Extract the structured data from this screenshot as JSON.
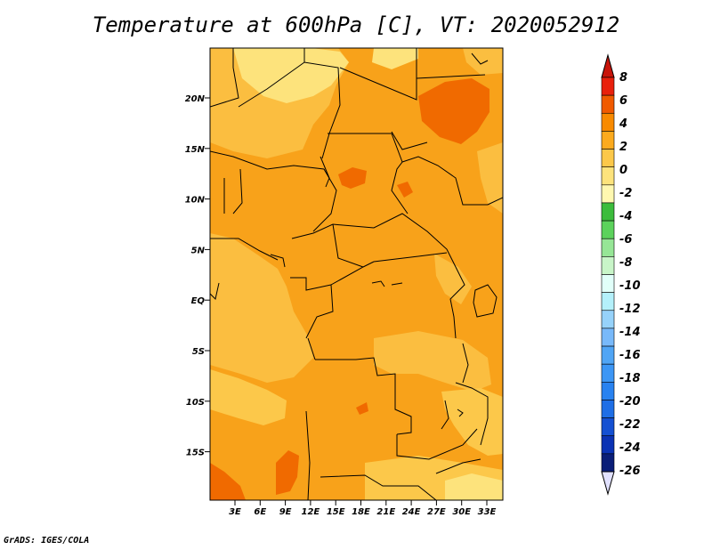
{
  "title": "Temperature at 600hPa [C], VT: 2020052912",
  "footer": "GrADS: IGES/COLA",
  "map": {
    "lat_ticks": [
      "20N",
      "15N",
      "10N",
      "5N",
      "EQ",
      "5S",
      "10S",
      "15S"
    ],
    "lon_ticks": [
      "3E",
      "6E",
      "9E",
      "12E",
      "15E",
      "18E",
      "21E",
      "24E",
      "27E",
      "30E",
      "33E"
    ]
  },
  "colorbar": {
    "labels": [
      "8",
      "6",
      "4",
      "2",
      "0",
      "-2",
      "-4",
      "-6",
      "-8",
      "-10",
      "-12",
      "-14",
      "-16",
      "-18",
      "-20",
      "-22",
      "-24",
      "-26"
    ],
    "colors": [
      "#e8200c",
      "#f05a00",
      "#f88a00",
      "#fbaa1e",
      "#fcc84a",
      "#fde37c",
      "#fff8b0",
      "#3cbc3c",
      "#5cd25c",
      "#96e696",
      "#c8f5c8",
      "#e1fff9",
      "#b4f0fa",
      "#96d2fa",
      "#78b9fa",
      "#50a5f5",
      "#3c96f5",
      "#2882f0",
      "#1e6ee6",
      "#1450d2",
      "#0a32b4",
      "#0a1e78"
    ],
    "top_arrow_color": "#c8140a",
    "bottom_arrow_color": "#e1e1ff"
  }
}
